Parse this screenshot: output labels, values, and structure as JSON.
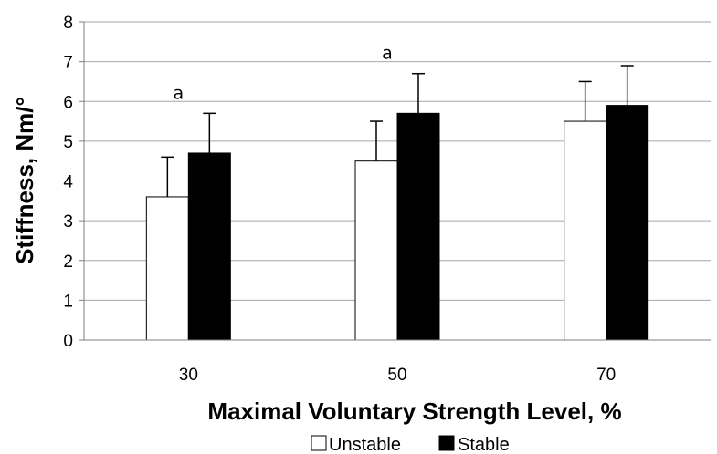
{
  "chart_data": {
    "type": "bar",
    "title": "",
    "xlabel": "Maximal Voluntary Strength Level, %",
    "ylabel": "Stiffness, Nm/°",
    "categories": [
      "30",
      "50",
      "70"
    ],
    "ylim": [
      0,
      8
    ],
    "yticks": [
      "0",
      "1",
      "2",
      "3",
      "4",
      "5",
      "6",
      "7",
      "8"
    ],
    "grid": true,
    "legend_position": "bottom",
    "series": [
      {
        "name": "Unstable",
        "color": "#ffffff",
        "values": [
          3.6,
          4.5,
          5.5
        ],
        "errors": [
          1.0,
          1.0,
          1.0
        ]
      },
      {
        "name": "Stable",
        "color": "#000000",
        "values": [
          4.7,
          5.7,
          5.9
        ],
        "errors": [
          1.0,
          1.0,
          1.0
        ]
      }
    ],
    "annotations": [
      {
        "text": "a",
        "category": "30",
        "y": 5.7
      },
      {
        "text": "a",
        "category": "50",
        "y": 6.7
      }
    ]
  }
}
